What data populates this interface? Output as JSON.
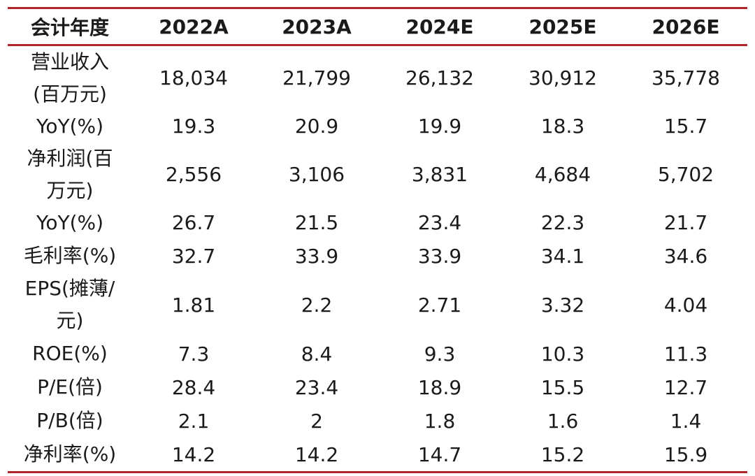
{
  "table": {
    "columns": [
      "会计年度",
      "2022A",
      "2023A",
      "2024E",
      "2025E",
      "2026E"
    ],
    "rows": [
      {
        "label": "营业收入(百万元)",
        "label_lines": [
          "营业收入",
          "(百万元)"
        ],
        "values": [
          "18,034",
          "21,799",
          "26,132",
          "30,912",
          "35,778"
        ]
      },
      {
        "label": "YoY(%)",
        "label_lines": [
          "YoY(%)"
        ],
        "values": [
          "19.3",
          "20.9",
          "19.9",
          "18.3",
          "15.7"
        ]
      },
      {
        "label": "净利润(百万元)",
        "label_lines": [
          "净利润(百",
          "万元)"
        ],
        "values": [
          "2,556",
          "3,106",
          "3,831",
          "4,684",
          "5,702"
        ]
      },
      {
        "label": "YoY(%)",
        "label_lines": [
          "YoY(%)"
        ],
        "values": [
          "26.7",
          "21.5",
          "23.4",
          "22.3",
          "21.7"
        ]
      },
      {
        "label": "毛利率(%)",
        "label_lines": [
          "毛利率(%)"
        ],
        "values": [
          "32.7",
          "33.9",
          "33.9",
          "34.1",
          "34.6"
        ]
      },
      {
        "label": "EPS(摊薄/元)",
        "label_lines": [
          "EPS(摊薄/",
          "元)"
        ],
        "values": [
          "1.81",
          "2.2",
          "2.71",
          "3.32",
          "4.04"
        ]
      },
      {
        "label": "ROE(%)",
        "label_lines": [
          "ROE(%)"
        ],
        "values": [
          "7.3",
          "8.4",
          "9.3",
          "10.3",
          "11.3"
        ]
      },
      {
        "label": "P/E(倍)",
        "label_lines": [
          "P/E(倍)"
        ],
        "values": [
          "28.4",
          "23.4",
          "18.9",
          "15.5",
          "12.7"
        ]
      },
      {
        "label": "P/B(倍)",
        "label_lines": [
          "P/B(倍)"
        ],
        "values": [
          "2.1",
          "2",
          "1.8",
          "1.6",
          "1.4"
        ]
      },
      {
        "label": "净利率(%)",
        "label_lines": [
          "净利率(%)"
        ],
        "values": [
          "14.2",
          "14.2",
          "14.7",
          "15.2",
          "15.9"
        ]
      }
    ],
    "rule_color": "#b0252b"
  }
}
